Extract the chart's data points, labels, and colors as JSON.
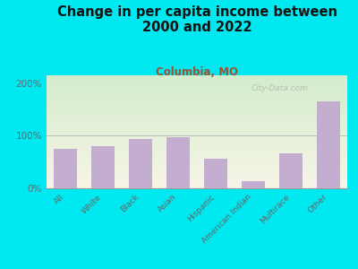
{
  "categories": [
    "All",
    "White",
    "Black",
    "Asian",
    "Hispanic",
    "American Indian",
    "Multirace",
    "Other"
  ],
  "values": [
    75,
    80,
    93,
    97,
    57,
    14,
    67,
    165
  ],
  "bar_color": "#c4aed0",
  "title": "Change in per capita income between\n2000 and 2022",
  "subtitle": "Columbia, MO",
  "subtitle_color": "#a0522d",
  "title_color": "#111111",
  "title_fontsize": 10.5,
  "subtitle_fontsize": 8.5,
  "bg_outer": "#00e8f0",
  "yticks": [
    0,
    100,
    200
  ],
  "ytick_labels": [
    "0%",
    "100%",
    "200%"
  ],
  "ylim": [
    0,
    215
  ],
  "watermark": "City-Data.com",
  "tick_label_color": "#666666"
}
